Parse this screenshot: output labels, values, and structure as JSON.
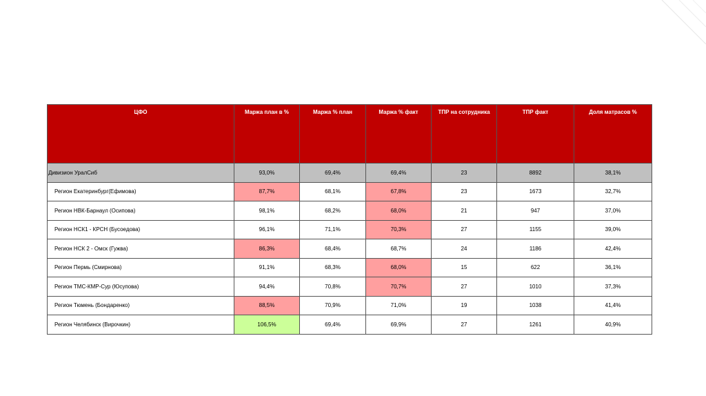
{
  "table": {
    "header": [
      "ЦФО",
      "Маржа план в %",
      "Маржа % план",
      "Маржа % факт",
      "ТПР на сотрудника",
      "ТПР факт",
      "Доля матрасов %"
    ],
    "rows": [
      [
        "Дивизион УралСиб",
        "93,0%",
        "69,4%",
        "69,4%",
        "23",
        "8892",
        "38,1%"
      ],
      [
        "Регион Екатеринбург(Ефимова)",
        "87,7%",
        "68,1%",
        "67,8%",
        "23",
        "1673",
        "32,7%"
      ],
      [
        "Регион НВК-Барнаул (Осипова)",
        "98,1%",
        "68,2%",
        "68,0%",
        "21",
        "947",
        "37,0%"
      ],
      [
        "Регион НСК1 - КРСН (Бусоедова)",
        "96,1%",
        "71,1%",
        "70,3%",
        "27",
        "1155",
        "39,0%"
      ],
      [
        "Регион НСК 2 -  Омск (Гужва)",
        "86,3%",
        "68,4%",
        "68,7%",
        "24",
        "1186",
        "42,4%"
      ],
      [
        "Регион Пермь (Смирнова)",
        "91,1%",
        "68,3%",
        "68,0%",
        "15",
        "622",
        "36,1%"
      ],
      [
        "Регион ТМС-КМР-Сур (Юсупова)",
        "94,4%",
        "70,8%",
        "70,7%",
        "27",
        "1010",
        "37,3%"
      ],
      [
        "Регион Тюмень (Бондаренко)",
        "88,5%",
        "70,9%",
        "71,0%",
        "19",
        "1038",
        "41,4%"
      ],
      [
        "Регион Челябинск (Вирочкин)",
        "106,5%",
        "69,4%",
        "69,9%",
        "27",
        "1261",
        "40,9%"
      ]
    ]
  }
}
